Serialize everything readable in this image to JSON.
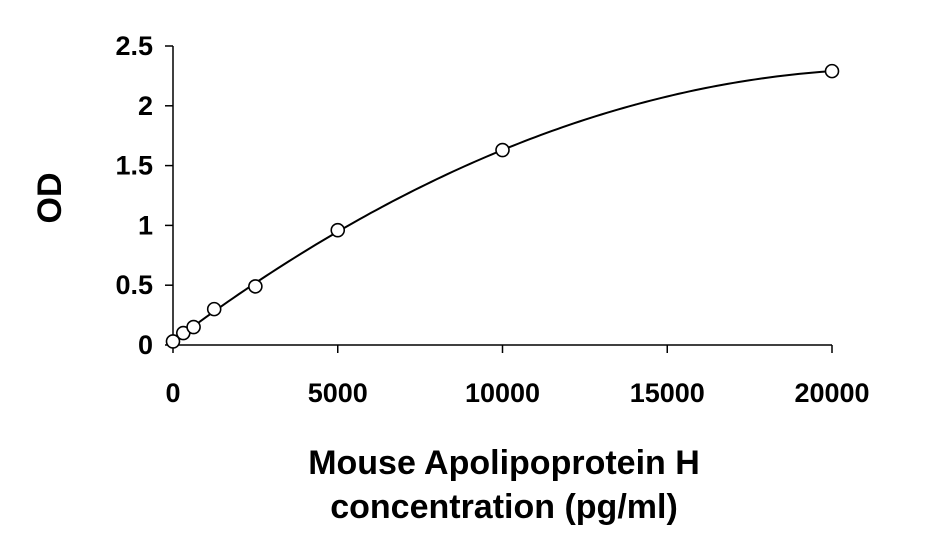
{
  "chart_data": {
    "type": "scatter",
    "title": "",
    "xlabel_lines": [
      "Mouse Apolipoprotein H",
      "concentration (pg/ml)"
    ],
    "ylabel": "OD",
    "xlim": [
      0,
      20000
    ],
    "ylim": [
      0,
      2.5
    ],
    "xticks": [
      0,
      5000,
      10000,
      15000,
      20000
    ],
    "yticks": [
      0,
      0.5,
      1,
      1.5,
      2,
      2.5
    ],
    "ytick_labels": [
      "0",
      "0.5",
      "1",
      "1.5",
      "2",
      "2.5"
    ],
    "grid": false,
    "legend": "none",
    "series": [
      {
        "marker": "open-circle",
        "trendline": "polynomial",
        "x": [
          0,
          312.5,
          625,
          1250,
          2500,
          5000,
          10000,
          20000
        ],
        "y": [
          0.03,
          0.1,
          0.15,
          0.3,
          0.49,
          0.96,
          1.63,
          2.29
        ]
      }
    ],
    "colors": {
      "axis": "#000000",
      "marker": "#000000",
      "line": "#000000"
    }
  }
}
